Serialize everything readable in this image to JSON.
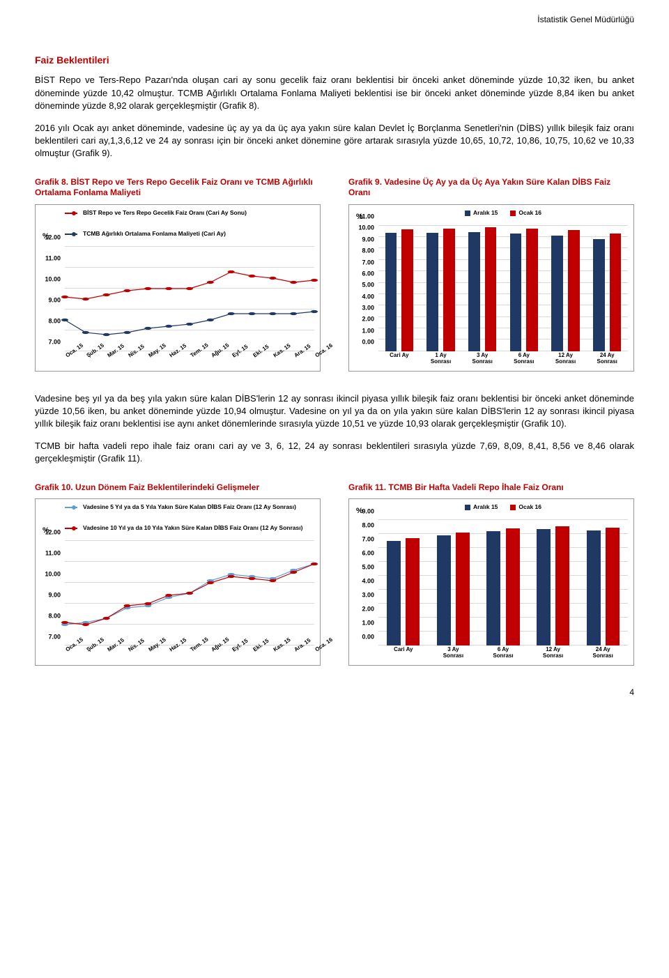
{
  "header": {
    "org": "İstatistik Genel Müdürlüğü"
  },
  "section": {
    "title": "Faiz Beklentileri"
  },
  "paras": {
    "p1": "BİST Repo ve Ters-Repo Pazarı'nda oluşan cari ay sonu gecelik faiz oranı beklentisi bir önceki anket döneminde yüzde 10,32 iken, bu anket döneminde yüzde 10,42 olmuştur. TCMB Ağırlıklı Ortalama Fonlama Maliyeti beklentisi ise bir önceki anket döneminde yüzde 8,84 iken bu anket döneminde yüzde 8,92 olarak gerçekleşmiştir (Grafik 8).",
    "p2": "2016 yılı Ocak ayı anket döneminde, vadesine üç ay ya da üç aya yakın süre kalan Devlet İç Borçlanma Senetleri'nin (DİBS) yıllık bileşik faiz oranı beklentileri cari ay,1,3,6,12 ve 24 ay sonrası için bir önceki anket dönemine göre artarak sırasıyla yüzde 10,65, 10,72, 10,86, 10,75, 10,62 ve 10,33 olmuştur (Grafik 9).",
    "p3": "Vadesine beş yıl ya da beş yıla yakın süre kalan DİBS'lerin 12 ay sonrası ikincil piyasa yıllık bileşik faiz oranı beklentisi bir önceki anket döneminde yüzde 10,56 iken, bu anket döneminde yüzde 10,94 olmuştur. Vadesine on yıl ya da on yıla yakın süre kalan DİBS'lerin 12 ay sonrası ikincil piyasa yıllık bileşik faiz oranı beklentisi ise aynı anket dönemlerinde sırasıyla yüzde 10,51 ve yüzde 10,93 olarak gerçekleşmiştir (Grafik 10).",
    "p4": "TCMB bir hafta vadeli repo ihale faiz oranı cari ay ve 3, 6, 12, 24 ay sonrası beklentileri sırasıyla yüzde 7,69, 8,09, 8,41, 8,56 ve 8,46 olarak gerçekleşmiştir (Grafik 11)."
  },
  "chart8": {
    "title": "Grafik 8. BİST Repo ve Ters Repo Gecelik Faiz Oranı ve TCMB Ağırlıklı Ortalama Fonlama Maliyeti",
    "type": "line",
    "ylim": [
      7,
      12
    ],
    "ytick_step": 1,
    "y_unit": "%",
    "x_labels": [
      "Oca. 15",
      "Şub. 15",
      "Mar. 15",
      "Nis. 15",
      "May. 15",
      "Haz. 15",
      "Tem. 15",
      "Ağu. 15",
      "Eyl. 15",
      "Eki. 15",
      "Kas. 15",
      "Ara. 15",
      "Oca. 16"
    ],
    "series": [
      {
        "name": "BİST Repo ve Ters Repo Gecelik Faiz Oranı (Cari Ay Sonu)",
        "color": "#c00000",
        "values": [
          9.6,
          9.5,
          9.7,
          9.9,
          10.0,
          10.0,
          10.0,
          10.3,
          10.8,
          10.6,
          10.5,
          10.3,
          10.4
        ]
      },
      {
        "name": "TCMB Ağırlıklı Ortalama Fonlama Maliyeti (Cari Ay)",
        "color": "#203864",
        "values": [
          8.5,
          7.9,
          7.8,
          7.9,
          8.1,
          8.2,
          8.3,
          8.5,
          8.8,
          8.8,
          8.8,
          8.8,
          8.9
        ]
      }
    ],
    "grid_color": "#d9d9d9",
    "background": "#ffffff"
  },
  "chart9": {
    "title": "Grafik 9. Vadesine Üç Ay ya da Üç Aya Yakın Süre Kalan DİBS Faiz Oranı",
    "type": "bar",
    "ylim": [
      0,
      11
    ],
    "ytick_step": 1,
    "y_unit": "%",
    "x_labels": [
      "Cari Ay",
      "1 Ay\nSonrası",
      "3 Ay\nSonrası",
      "6 Ay\nSonrası",
      "12 Ay\nSonrası",
      "24 Ay\nSonrası"
    ],
    "legend": [
      {
        "label": "Aralık 15",
        "color": "#203864"
      },
      {
        "label": "Ocak 16",
        "color": "#c00000"
      }
    ],
    "groups": [
      {
        "a": 10.35,
        "b": 10.65
      },
      {
        "a": 10.4,
        "b": 10.72
      },
      {
        "a": 10.45,
        "b": 10.86
      },
      {
        "a": 10.3,
        "b": 10.75
      },
      {
        "a": 10.1,
        "b": 10.62
      },
      {
        "a": 9.8,
        "b": 10.33
      }
    ],
    "grid_color": "#d9d9d9"
  },
  "chart10": {
    "title": "Grafik 10. Uzun Dönem Faiz Beklentilerindeki Gelişmeler",
    "type": "line",
    "ylim": [
      7,
      12
    ],
    "ytick_step": 1,
    "y_unit": "%",
    "x_labels": [
      "Oca. 15",
      "Şub. 15",
      "Mar. 15",
      "Nis. 15",
      "May. 15",
      "Haz. 15",
      "Tem. 15",
      "Ağu. 15",
      "Eyl. 15",
      "Eki. 15",
      "Kas. 15",
      "Ara. 15",
      "Oca. 16"
    ],
    "series": [
      {
        "name": "Vadesine 5 Yıl ya da 5 Yıla Yakın Süre Kalan DİBS Faiz Oranı (12 Ay Sonrası)",
        "color": "#629dd1",
        "values": [
          8.0,
          8.1,
          8.3,
          8.8,
          8.9,
          9.3,
          9.5,
          10.1,
          10.4,
          10.3,
          10.2,
          10.6,
          10.9
        ]
      },
      {
        "name": "Vadesine 10 Yıl ya da 10 Yıla Yakın Süre Kalan DİBS Faiz Oranı (12 Ay Sonrası)",
        "color": "#c00000",
        "values": [
          8.1,
          8.0,
          8.3,
          8.9,
          9.0,
          9.4,
          9.5,
          10.0,
          10.3,
          10.2,
          10.1,
          10.5,
          10.9
        ]
      }
    ],
    "grid_color": "#d9d9d9"
  },
  "chart11": {
    "title": "Grafik 11. TCMB Bir Hafta Vadeli Repo İhale Faiz Oranı",
    "type": "bar",
    "ylim": [
      0,
      9
    ],
    "ytick_step": 1,
    "y_unit": "%",
    "x_labels": [
      "Cari Ay",
      "3 Ay\nSonrası",
      "6 Ay\nSonrası",
      "12 Ay\nSonrası",
      "24 Ay\nSonrası"
    ],
    "legend": [
      {
        "label": "Aralık 15",
        "color": "#203864"
      },
      {
        "label": "Ocak 16",
        "color": "#c00000"
      }
    ],
    "groups": [
      {
        "a": 7.5,
        "b": 7.69
      },
      {
        "a": 7.9,
        "b": 8.09
      },
      {
        "a": 8.2,
        "b": 8.41
      },
      {
        "a": 8.35,
        "b": 8.56
      },
      {
        "a": 8.25,
        "b": 8.46
      }
    ],
    "grid_color": "#d9d9d9"
  },
  "pageNumber": "4"
}
